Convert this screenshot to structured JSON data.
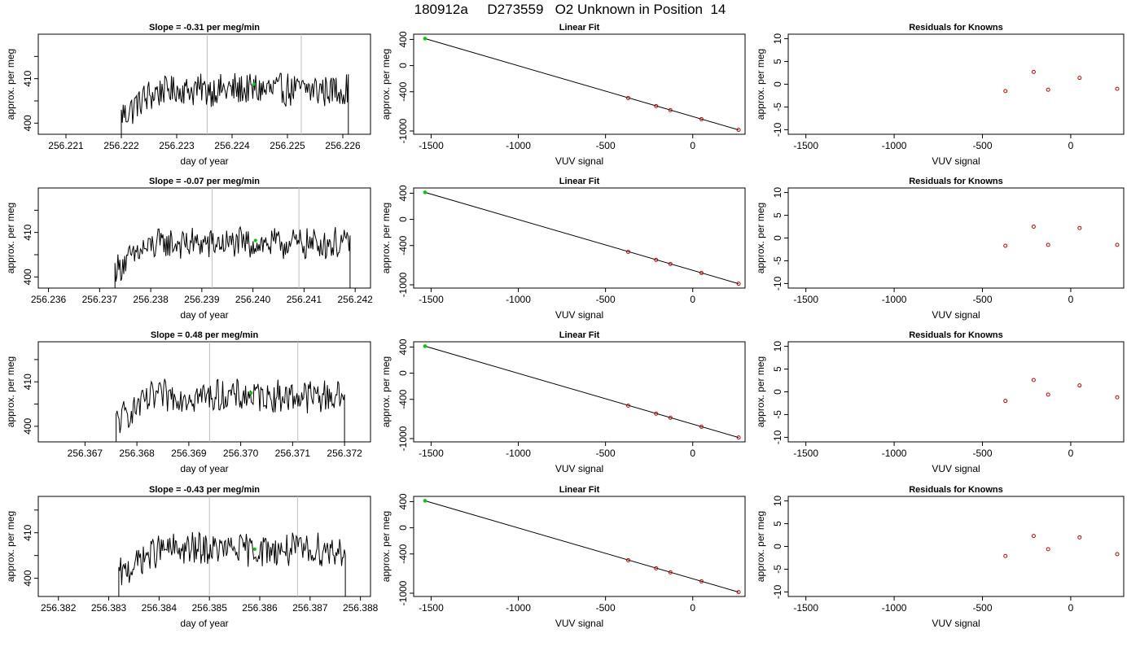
{
  "page_title": "180912a     D273559   O2 Unknown in Position  14",
  "rows": [
    {
      "timeseries": {
        "title": "Slope =  -0.31  per meg/min",
        "xlabel": "day of year",
        "ylabel": "approx. per meg",
        "xlim": [
          256.2205,
          256.2265
        ],
        "ylim": [
          397.5,
          420
        ],
        "xticks": [
          256.221,
          256.222,
          256.223,
          256.224,
          256.225,
          256.226
        ],
        "xtick_labels": [
          "256.221",
          "256.222",
          "256.223",
          "256.224",
          "256.225",
          "256.226"
        ],
        "yticks": [
          400,
          405,
          410,
          415
        ],
        "ytick_labels": [
          "400",
          "",
          "410",
          ""
        ],
        "start": 256.222,
        "end": 256.2261,
        "level": 407.5,
        "noise": 2.5,
        "vlines": [
          256.22355,
          256.22525
        ],
        "marker": [
          256.2244,
          408.8
        ]
      },
      "fit": {
        "title": "Linear Fit",
        "xlabel": "VUV signal",
        "ylabel": "approx. per meg",
        "xlim": [
          -1600,
          300
        ],
        "ylim": [
          -1050,
          480
        ],
        "xticks": [
          -1500,
          -1000,
          -500,
          0
        ],
        "xtick_labels": [
          "-1500",
          "-1000",
          "-500",
          "0"
        ],
        "yticks": [
          400,
          0,
          -400,
          -1000
        ],
        "ytick_labels": [
          "400",
          "0",
          "-400",
          "-1000"
        ],
        "points": [
          [
            -370,
            -497
          ],
          [
            -210,
            -619
          ],
          [
            -128,
            -681
          ],
          [
            50,
            -819
          ],
          [
            263,
            -983
          ]
        ],
        "unknown": [
          -1535,
          413
        ],
        "line": [
          [
            -1535,
            413
          ],
          [
            263,
            -983
          ]
        ]
      },
      "residuals": {
        "title": "Residuals for Knowns",
        "xlabel": "VUV signal",
        "ylabel": "approx. per meg",
        "xlim": [
          -1600,
          300
        ],
        "ylim": [
          -11,
          11
        ],
        "xticks": [
          -1500,
          -1000,
          -500,
          0
        ],
        "xtick_labels": [
          "-1500",
          "-1000",
          "-500",
          "0"
        ],
        "yticks": [
          10,
          5,
          0,
          -5,
          -10
        ],
        "ytick_labels": [
          "10",
          "5",
          "0",
          "-5",
          "-10"
        ],
        "points": [
          [
            -370,
            -1.5
          ],
          [
            -210,
            2.7
          ],
          [
            -128,
            -1.2
          ],
          [
            50,
            1.4
          ],
          [
            263,
            -1.0
          ]
        ]
      }
    },
    {
      "timeseries": {
        "title": "Slope =  -0.07  per meg/min",
        "xlabel": "day of year",
        "ylabel": "approx. per meg",
        "xlim": [
          256.2358,
          256.2423
        ],
        "ylim": [
          397.5,
          420
        ],
        "xticks": [
          256.236,
          256.237,
          256.238,
          256.239,
          256.24,
          256.241,
          256.242
        ],
        "xtick_labels": [
          "256.236",
          "256.237",
          "256.238",
          "256.239",
          "256.240",
          "256.241",
          "256.242"
        ],
        "yticks": [
          400,
          405,
          410,
          415
        ],
        "ytick_labels": [
          "400",
          "",
          "410",
          ""
        ],
        "start": 256.2373,
        "end": 256.2419,
        "level": 407.5,
        "noise": 2.3,
        "vlines": [
          256.2392,
          256.2409
        ],
        "marker": [
          256.24005,
          408.2
        ]
      },
      "fit": {
        "title": "Linear Fit",
        "xlabel": "VUV signal",
        "ylabel": "approx. per meg",
        "xlim": [
          -1600,
          300
        ],
        "ylim": [
          -1050,
          480
        ],
        "xticks": [
          -1500,
          -1000,
          -500,
          0
        ],
        "xtick_labels": [
          "-1500",
          "-1000",
          "-500",
          "0"
        ],
        "yticks": [
          400,
          0,
          -400,
          -1000
        ],
        "ytick_labels": [
          "400",
          "0",
          "-400",
          "-1000"
        ],
        "points": [
          [
            -370,
            -497
          ],
          [
            -210,
            -619
          ],
          [
            -128,
            -681
          ],
          [
            50,
            -819
          ],
          [
            263,
            -983
          ]
        ],
        "unknown": [
          -1535,
          413
        ],
        "line": [
          [
            -1535,
            413
          ],
          [
            263,
            -983
          ]
        ]
      },
      "residuals": {
        "title": "Residuals for Knowns",
        "xlabel": "VUV signal",
        "ylabel": "approx. per meg",
        "xlim": [
          -1600,
          300
        ],
        "ylim": [
          -11,
          11
        ],
        "xticks": [
          -1500,
          -1000,
          -500,
          0
        ],
        "xtick_labels": [
          "-1500",
          "-1000",
          "-500",
          "0"
        ],
        "yticks": [
          10,
          5,
          0,
          -5,
          -10
        ],
        "ytick_labels": [
          "10",
          "5",
          "0",
          "-5",
          "-10"
        ],
        "points": [
          [
            -370,
            -1.7
          ],
          [
            -210,
            2.5
          ],
          [
            -128,
            -1.5
          ],
          [
            50,
            2.2
          ],
          [
            263,
            -1.5
          ]
        ]
      }
    },
    {
      "timeseries": {
        "title": "Slope =  0.48  per meg/min",
        "xlabel": "day of year",
        "ylabel": "approx. per meg",
        "xlim": [
          256.3661,
          256.3725
        ],
        "ylim": [
          396.5,
          419
        ],
        "xticks": [
          256.367,
          256.368,
          256.369,
          256.37,
          256.371,
          256.372
        ],
        "xtick_labels": [
          "256.367",
          "256.368",
          "256.369",
          "256.370",
          "256.371",
          "256.372"
        ],
        "yticks": [
          400,
          405,
          410,
          415
        ],
        "ytick_labels": [
          "400",
          "",
          "410",
          ""
        ],
        "start": 256.3676,
        "end": 256.372,
        "level": 406.8,
        "noise": 2.4,
        "vlines": [
          256.3694,
          256.3711
        ],
        "marker": [
          256.3702,
          407.5
        ]
      },
      "fit": {
        "title": "Linear Fit",
        "xlabel": "VUV signal",
        "ylabel": "approx. per meg",
        "xlim": [
          -1600,
          300
        ],
        "ylim": [
          -1050,
          480
        ],
        "xticks": [
          -1500,
          -1000,
          -500,
          0
        ],
        "xtick_labels": [
          "-1500",
          "-1000",
          "-500",
          "0"
        ],
        "yticks": [
          400,
          0,
          -400,
          -1000
        ],
        "ytick_labels": [
          "400",
          "0",
          "-400",
          "-1000"
        ],
        "points": [
          [
            -370,
            -497
          ],
          [
            -210,
            -619
          ],
          [
            -128,
            -681
          ],
          [
            50,
            -819
          ],
          [
            263,
            -983
          ]
        ],
        "unknown": [
          -1535,
          413
        ],
        "line": [
          [
            -1535,
            413
          ],
          [
            263,
            -983
          ]
        ]
      },
      "residuals": {
        "title": "Residuals for Knowns",
        "xlabel": "VUV signal",
        "ylabel": "approx. per meg",
        "xlim": [
          -1600,
          300
        ],
        "ylim": [
          -11,
          11
        ],
        "xticks": [
          -1500,
          -1000,
          -500,
          0
        ],
        "xtick_labels": [
          "-1500",
          "-1000",
          "-500",
          "0"
        ],
        "yticks": [
          10,
          5,
          0,
          -5,
          -10
        ],
        "ytick_labels": [
          "10",
          "5",
          "0",
          "-5",
          "-10"
        ],
        "points": [
          [
            -370,
            -2.0
          ],
          [
            -210,
            2.6
          ],
          [
            -128,
            -0.6
          ],
          [
            50,
            1.4
          ],
          [
            263,
            -1.2
          ]
        ]
      }
    },
    {
      "timeseries": {
        "title": "Slope =  -0.43  per meg/min",
        "xlabel": "day of year",
        "ylabel": "approx. per meg",
        "xlim": [
          256.3816,
          256.3882
        ],
        "ylim": [
          396,
          418
        ],
        "xticks": [
          256.382,
          256.383,
          256.384,
          256.385,
          256.386,
          256.387,
          256.388
        ],
        "xtick_labels": [
          "256.382",
          "256.383",
          "256.384",
          "256.385",
          "256.386",
          "256.387",
          "256.388"
        ],
        "yticks": [
          400,
          405,
          410,
          415
        ],
        "ytick_labels": [
          "400",
          "",
          "410",
          ""
        ],
        "start": 256.3832,
        "end": 256.3877,
        "level": 406.3,
        "noise": 2.4,
        "vlines": [
          256.385,
          256.38675
        ],
        "marker": [
          256.3859,
          406.4
        ]
      },
      "fit": {
        "title": "Linear Fit",
        "xlabel": "VUV signal",
        "ylabel": "approx. per meg",
        "xlim": [
          -1600,
          300
        ],
        "ylim": [
          -1050,
          480
        ],
        "xticks": [
          -1500,
          -1000,
          -500,
          0
        ],
        "xtick_labels": [
          "-1500",
          "-1000",
          "-500",
          "0"
        ],
        "yticks": [
          400,
          0,
          -400,
          -1000
        ],
        "ytick_labels": [
          "400",
          "0",
          "-400",
          "-1000"
        ],
        "points": [
          [
            -370,
            -497
          ],
          [
            -210,
            -619
          ],
          [
            -128,
            -681
          ],
          [
            50,
            -819
          ],
          [
            263,
            -983
          ]
        ],
        "unknown": [
          -1535,
          413
        ],
        "line": [
          [
            -1535,
            413
          ],
          [
            263,
            -983
          ]
        ]
      },
      "residuals": {
        "title": "Residuals for Knowns",
        "xlabel": "VUV signal",
        "ylabel": "approx. per meg",
        "xlim": [
          -1600,
          300
        ],
        "ylim": [
          -11,
          11
        ],
        "xticks": [
          -1500,
          -1000,
          -500,
          0
        ],
        "xtick_labels": [
          "-1500",
          "-1000",
          "-500",
          "0"
        ],
        "yticks": [
          10,
          5,
          0,
          -5,
          -10
        ],
        "ytick_labels": [
          "10",
          "5",
          "0",
          "-5",
          "-10"
        ],
        "points": [
          [
            -370,
            -2.1
          ],
          [
            -210,
            2.3
          ],
          [
            -128,
            -0.6
          ],
          [
            50,
            2.0
          ],
          [
            263,
            -1.7
          ]
        ]
      }
    }
  ],
  "colors": {
    "axis": "#000000",
    "trace": "#000000",
    "vline": "#bebebe",
    "known_point": "#cd0000",
    "unknown_point": "#00cd00"
  },
  "chart_data": {
    "type": "line",
    "title": "180912a     D273559   O2 Unknown in Position  14",
    "panels": [
      {
        "title": "Slope =  -0.31  per meg/min",
        "type": "line"
      },
      {
        "title": "Linear Fit",
        "type": "scatter"
      },
      {
        "title": "Residuals for Knowns",
        "type": "scatter"
      }
    ]
  }
}
